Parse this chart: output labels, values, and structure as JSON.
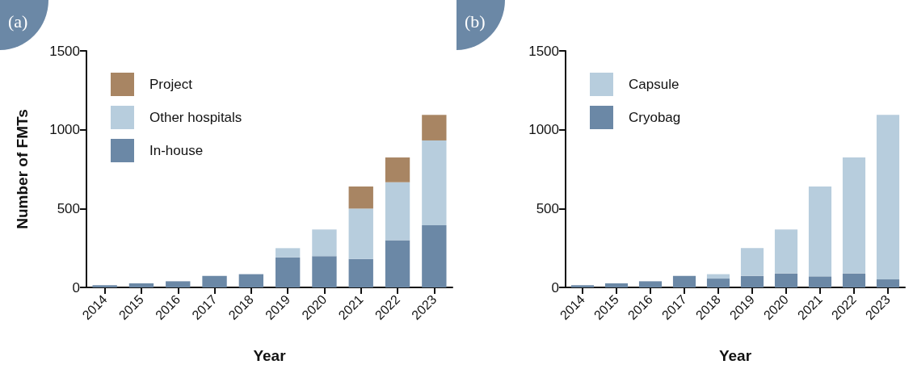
{
  "chart_data": [
    {
      "type": "bar",
      "annotations": [
        "(a)"
      ],
      "xlabel": "Year",
      "ylabel": "Number of FMTs",
      "categories": [
        "2014",
        "2015",
        "2016",
        "2017",
        "2018",
        "2019",
        "2020",
        "2021",
        "2022",
        "2023"
      ],
      "stacked": true,
      "ylim": [
        0,
        1500
      ],
      "yticks": [
        0,
        500,
        1000,
        1500
      ],
      "grid": false,
      "legend": "top left",
      "series": [
        {
          "name": "In-house",
          "color": "#6b88a6",
          "values": [
            14,
            26,
            39,
            73,
            84,
            190,
            198,
            181,
            300,
            394
          ]
        },
        {
          "name": "Other hospitals",
          "color": "#b7cddd",
          "values": [
            0,
            0,
            0,
            0,
            0,
            59,
            169,
            319,
            367,
            538
          ]
        },
        {
          "name": "Project",
          "color": "#a88563",
          "values": [
            0,
            0,
            0,
            0,
            0,
            0,
            0,
            140,
            157,
            162
          ]
        }
      ]
    },
    {
      "type": "bar",
      "annotations": [
        "(b)"
      ],
      "xlabel": "Year",
      "categories": [
        "2014",
        "2015",
        "2016",
        "2017",
        "2018",
        "2019",
        "2020",
        "2021",
        "2022",
        "2023"
      ],
      "stacked": true,
      "ylim": [
        0,
        1500
      ],
      "yticks": [
        0,
        500,
        1000,
        1500
      ],
      "grid": false,
      "legend": "top left",
      "series": [
        {
          "name": "Cryobag",
          "color": "#6b88a6",
          "values": [
            14,
            26,
            39,
            73,
            56,
            73,
            89,
            70,
            89,
            51
          ]
        },
        {
          "name": "Capsule",
          "color": "#b7cddd",
          "values": [
            0,
            0,
            0,
            0,
            28,
            176,
            278,
            570,
            735,
            1043
          ]
        }
      ]
    }
  ]
}
